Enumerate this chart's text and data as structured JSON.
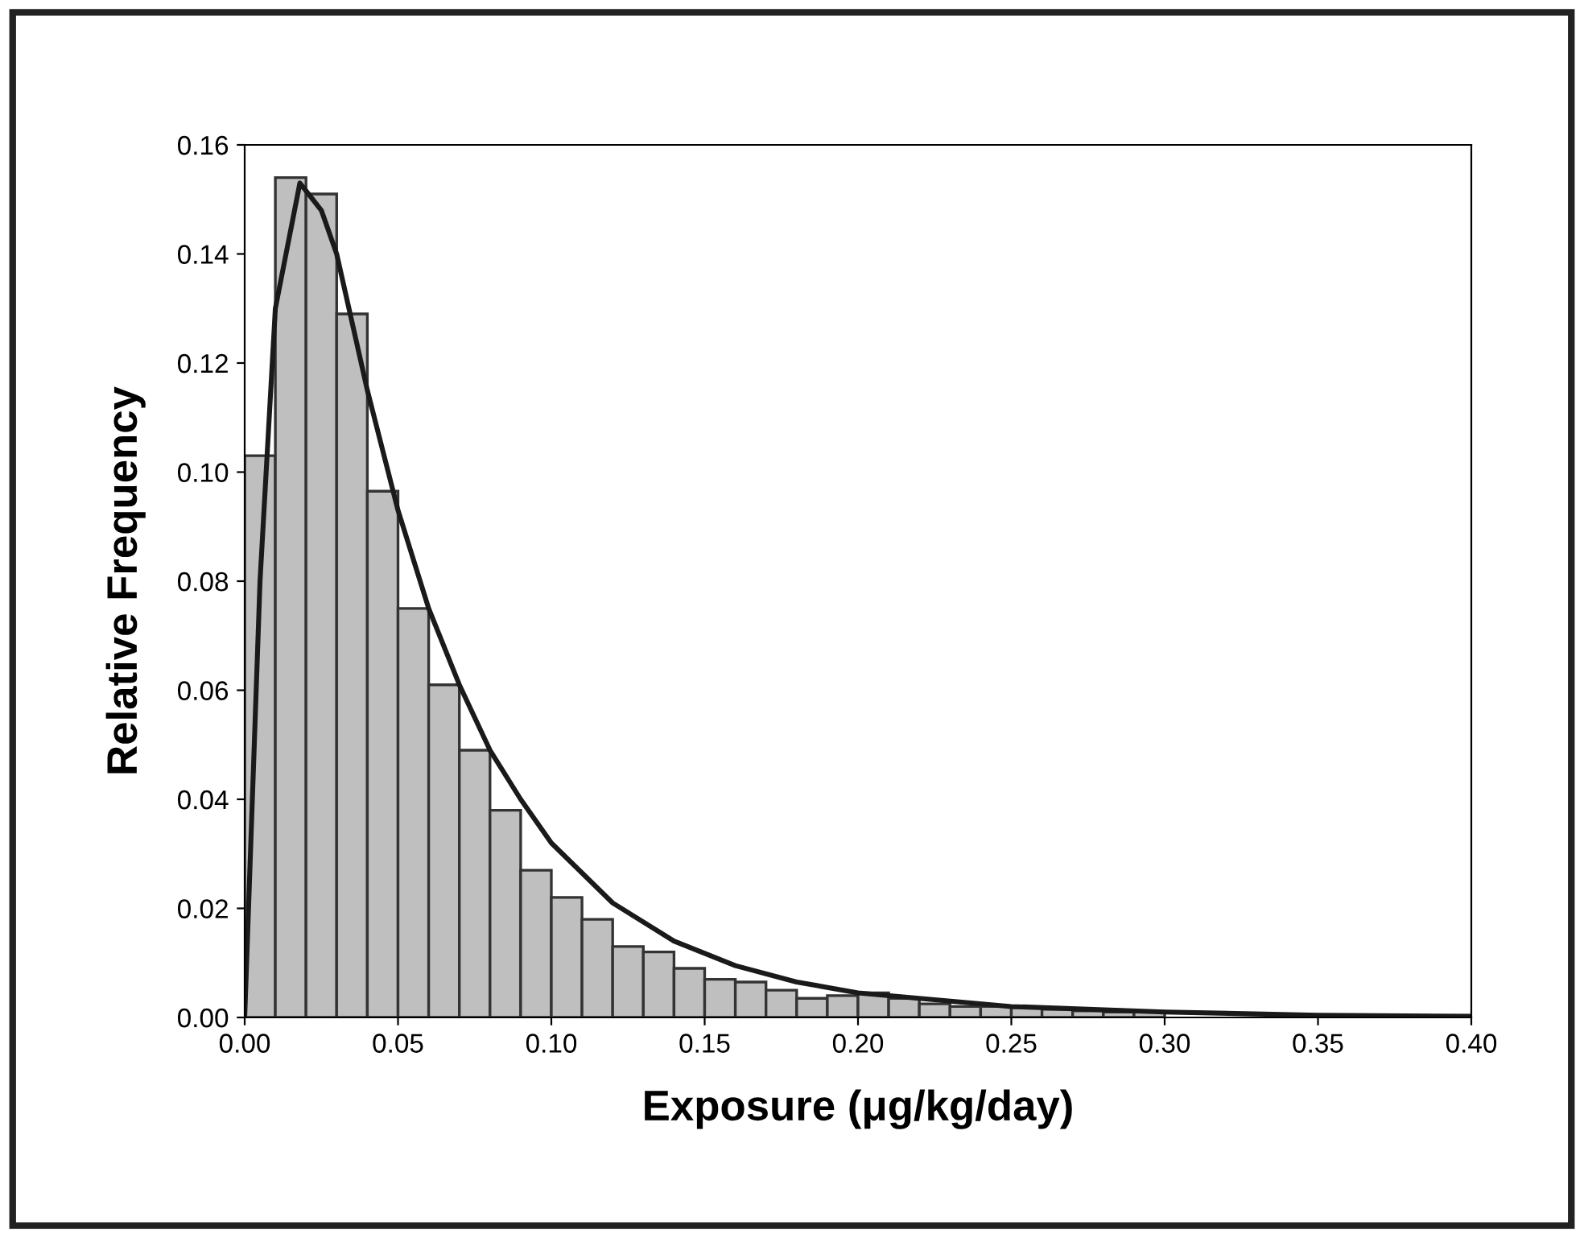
{
  "chart_data": {
    "type": "histogram",
    "xlabel": "Exposure (μg/kg/day)",
    "ylabel": "Relative Frequency",
    "bins": [
      0.0,
      0.01,
      0.02,
      0.03,
      0.04,
      0.05,
      0.06,
      0.07,
      0.08,
      0.09,
      0.1,
      0.11,
      0.12,
      0.13,
      0.14,
      0.15,
      0.16,
      0.17,
      0.18,
      0.19,
      0.2,
      0.21,
      0.22,
      0.23,
      0.24,
      0.25,
      0.26,
      0.27,
      0.28,
      0.29,
      0.3,
      0.31,
      0.32,
      0.33,
      0.34,
      0.35,
      0.36,
      0.37,
      0.38,
      0.39,
      0.4
    ],
    "values": [
      0.103,
      0.154,
      0.151,
      0.129,
      0.0965,
      0.075,
      0.061,
      0.049,
      0.038,
      0.027,
      0.022,
      0.018,
      0.013,
      0.012,
      0.009,
      0.007,
      0.0065,
      0.005,
      0.0035,
      0.004,
      0.0045,
      0.0035,
      0.0025,
      0.002,
      0.002,
      0.0018,
      0.0015,
      0.0012,
      0.001,
      0.001,
      null,
      null,
      null,
      null,
      null,
      null,
      null,
      null,
      null,
      null
    ],
    "color": "#bfbfbf",
    "series": [
      {
        "type": "line",
        "color": "#1a1a1a",
        "x": [
          0,
          0.005,
          0.01,
          0.018,
          0.025,
          0.03,
          0.04,
          0.05,
          0.06,
          0.07,
          0.08,
          0.09,
          0.1,
          0.12,
          0.14,
          0.16,
          0.18,
          0.2,
          0.25,
          0.3,
          0.35,
          0.4
        ],
        "values": [
          0,
          0.08,
          0.13,
          0.153,
          0.148,
          0.14,
          0.115,
          0.093,
          0.075,
          0.061,
          0.049,
          0.04,
          0.032,
          0.021,
          0.014,
          0.0095,
          0.0065,
          0.0045,
          0.002,
          0.001,
          0.0004,
          0.0002
        ]
      }
    ],
    "xlim": [
      0,
      0.4
    ],
    "ylim": [
      0,
      0.16
    ],
    "xticks": [
      {
        "value": 0,
        "label": "0.00"
      },
      {
        "value": 0.05,
        "label": "0.05"
      },
      {
        "value": 0.1,
        "label": "0.10"
      },
      {
        "value": 0.15,
        "label": "0.15"
      },
      {
        "value": 0.2,
        "label": "0.20"
      },
      {
        "value": 0.25,
        "label": "0.25"
      },
      {
        "value": 0.3,
        "label": "0.30"
      },
      {
        "value": 0.35,
        "label": "0.35"
      },
      {
        "value": 0.4,
        "label": "0.40"
      }
    ],
    "yticks": [
      {
        "value": 0,
        "label": "0.00"
      },
      {
        "value": 0.02,
        "label": "0.02"
      },
      {
        "value": 0.04,
        "label": "0.04"
      },
      {
        "value": 0.06,
        "label": "0.06"
      },
      {
        "value": 0.08,
        "label": "0.08"
      },
      {
        "value": 0.1,
        "label": "0.10"
      },
      {
        "value": 0.12,
        "label": "0.12"
      },
      {
        "value": 0.14,
        "label": "0.14"
      },
      {
        "value": 0.16,
        "label": "0.16"
      }
    ],
    "grid": false,
    "legend": false
  }
}
